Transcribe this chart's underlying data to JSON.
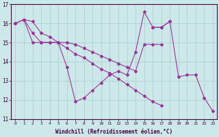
{
  "xlabel": "Windchill (Refroidissement éolien,°C)",
  "xlim": [
    -0.5,
    23.5
  ],
  "ylim": [
    11,
    17
  ],
  "yticks": [
    11,
    12,
    13,
    14,
    15,
    16,
    17
  ],
  "xticks": [
    0,
    1,
    2,
    3,
    4,
    5,
    6,
    7,
    8,
    9,
    10,
    11,
    12,
    13,
    14,
    15,
    16,
    17,
    18,
    19,
    20,
    21,
    22,
    23
  ],
  "bg_color": "#cce8e8",
  "line_color": "#993399",
  "grid_color": "#aacccc",
  "series": [
    [
      16.0,
      16.2,
      15.5,
      15.0,
      15.0,
      15.0,
      14.7,
      14.4,
      14.2,
      13.9,
      13.6,
      13.4,
      13.1,
      12.8,
      12.5,
      12.2,
      11.9,
      11.7,
      null,
      null,
      null,
      null,
      null,
      null
    ],
    [
      16.0,
      16.2,
      15.0,
      15.0,
      15.0,
      15.0,
      15.0,
      14.9,
      14.7,
      14.5,
      14.3,
      14.1,
      13.9,
      13.7,
      13.5,
      14.9,
      14.9,
      14.9,
      null,
      null,
      null,
      null,
      null,
      null
    ],
    [
      16.0,
      16.2,
      16.1,
      15.5,
      15.3,
      15.0,
      13.7,
      11.9,
      12.1,
      12.5,
      12.9,
      13.3,
      13.5,
      13.3,
      14.5,
      16.6,
      15.8,
      15.8,
      16.1,
      null,
      null,
      null,
      null,
      null
    ],
    [
      null,
      null,
      null,
      null,
      null,
      null,
      null,
      null,
      null,
      null,
      null,
      null,
      null,
      null,
      null,
      null,
      15.8,
      15.8,
      16.1,
      13.2,
      13.3,
      13.3,
      12.1,
      11.4
    ]
  ]
}
